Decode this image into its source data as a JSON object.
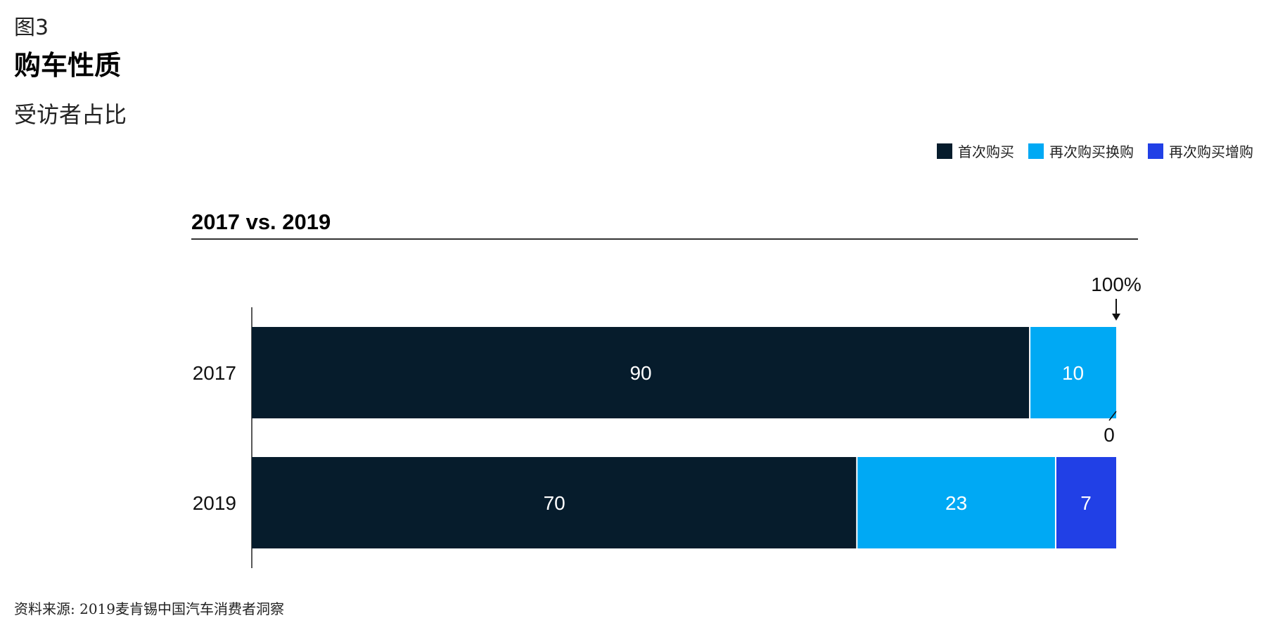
{
  "figure_label": "图3",
  "title": "购车性质",
  "subtitle": "受访者占比",
  "panel_title": "2017 vs. 2019",
  "source": "资料来源: 2019麦肯锡中国汽车消费者洞察",
  "legend": [
    {
      "name": "首次购买",
      "color": "#061c2c"
    },
    {
      "name": "再次购买换购",
      "color": "#00a9f4"
    },
    {
      "name": "再次购买增购",
      "color": "#2140e6"
    }
  ],
  "chart_data": {
    "type": "bar",
    "orientation": "horizontal",
    "stacked": true,
    "categories": [
      "2017",
      "2019"
    ],
    "series": [
      {
        "name": "首次购买",
        "values": [
          90,
          70
        ]
      },
      {
        "name": "再次购买换购",
        "values": [
          10,
          23
        ]
      },
      {
        "name": "再次购买增购",
        "values": [
          0,
          7
        ]
      }
    ],
    "xlim": [
      0,
      100
    ],
    "annotations": {
      "total": "100%",
      "zero_label": "0"
    },
    "colors": [
      "#061c2c",
      "#00a9f4",
      "#2140e6"
    ],
    "label_color": "#ffffff"
  }
}
